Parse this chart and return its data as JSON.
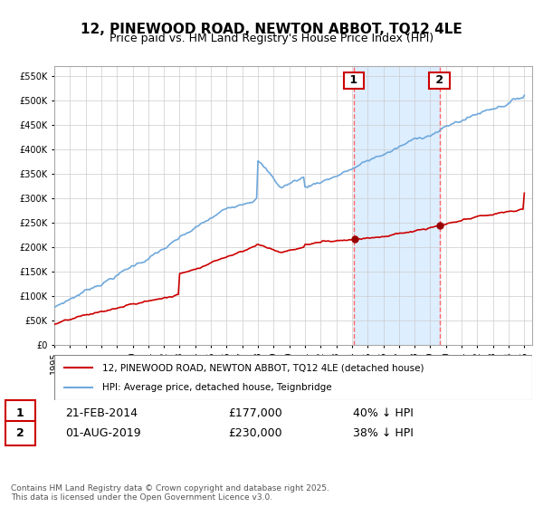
{
  "title": "12, PINEWOOD ROAD, NEWTON ABBOT, TQ12 4LE",
  "subtitle": "Price paid vs. HM Land Registry's House Price Index (HPI)",
  "legend_line1": "12, PINEWOOD ROAD, NEWTON ABBOT, TQ12 4LE (detached house)",
  "legend_line2": "HPI: Average price, detached house, Teignbridge",
  "annotation1_label": "1",
  "annotation1_date": "21-FEB-2014",
  "annotation1_price": "£177,000",
  "annotation1_pct": "40% ↓ HPI",
  "annotation2_label": "2",
  "annotation2_date": "01-AUG-2019",
  "annotation2_price": "£230,000",
  "annotation2_pct": "38% ↓ HPI",
  "footer": "Contains HM Land Registry data © Crown copyright and database right 2025.\nThis data is licensed under the Open Government Licence v3.0.",
  "hpi_color": "#6fa8dc",
  "price_color": "#cc0000",
  "marker_color": "#990000",
  "vline_color": "#ff6666",
  "shade_color": "#ddeeff",
  "bg_color": "#f0f4f8",
  "ylim_max": 570000,
  "x_start_year": 1995,
  "x_end_year": 2025,
  "event1_year": 2014.13,
  "event2_year": 2019.58,
  "event1_price": 177000,
  "event2_price": 230000
}
